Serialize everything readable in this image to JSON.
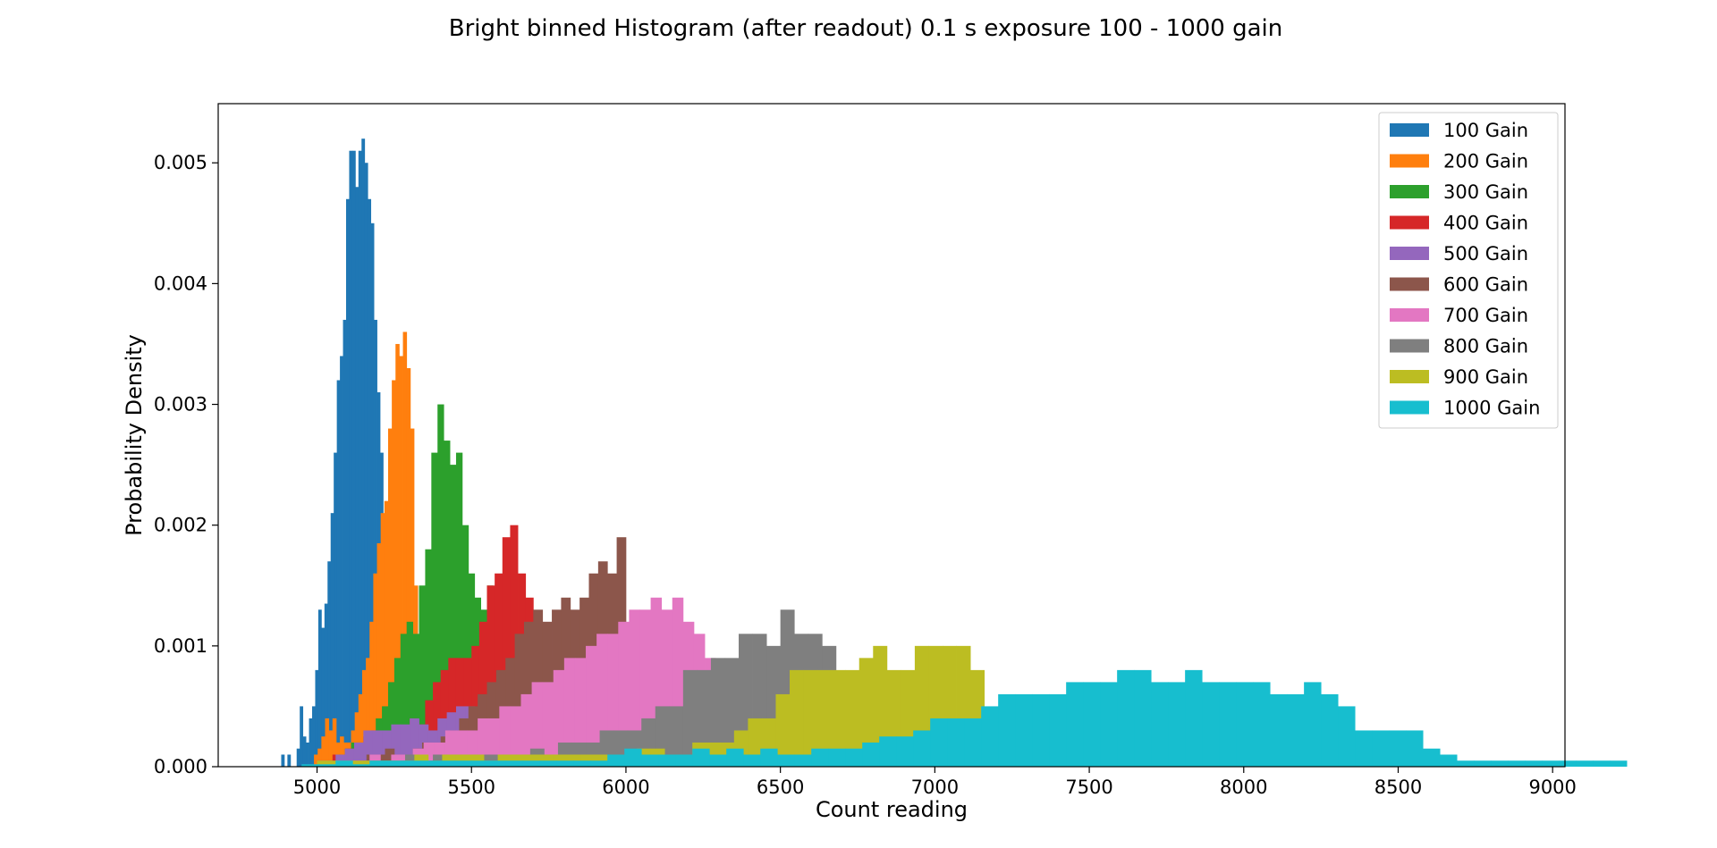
{
  "chart_data": {
    "type": "bar",
    "title": "Bright binned Histogram (after readout) 0.1 s exposure 100 - 1000 gain",
    "xlabel": "Count reading",
    "ylabel": "Probability Density",
    "xlim": [
      4680,
      9040
    ],
    "ylim": [
      0,
      0.00549
    ],
    "xticks": [
      5000,
      5500,
      6000,
      6500,
      7000,
      7500,
      8000,
      8500,
      9000
    ],
    "xtick_labels": [
      "5000",
      "5500",
      "6000",
      "6500",
      "7000",
      "7500",
      "8000",
      "8500",
      "9000"
    ],
    "yticks": [
      0,
      0.001,
      0.002,
      0.003,
      0.004,
      0.005
    ],
    "ytick_labels": [
      "0.000",
      "0.001",
      "0.002",
      "0.003",
      "0.004",
      "0.005"
    ],
    "grid": false,
    "legend_position": "top-right",
    "series": [
      {
        "name": "100 Gain",
        "color": "#1f77b4",
        "start": 4884,
        "bin_width": 10,
        "values": [
          0.0001,
          0,
          0.0001,
          0,
          0,
          0.00015,
          0.0005,
          0.00025,
          0.0002,
          0.0004,
          0.0005,
          0.0008,
          0.0013,
          0.00115,
          0.00135,
          0.0017,
          0.0021,
          0.0026,
          0.0032,
          0.0034,
          0.0037,
          0.0047,
          0.0051,
          0.0051,
          0.0048,
          0.0051,
          0.0052,
          0.005,
          0.0047,
          0.0045,
          0.0037,
          0.0031,
          0.0026,
          0.0007
        ]
      },
      {
        "name": "200 Gain",
        "color": "#ff7f0e",
        "start": 4990,
        "bin_width": 12,
        "values": [
          0.0001,
          0.00015,
          0.00025,
          0.0004,
          0.0003,
          0.0004,
          0.0002,
          0.00025,
          0.0002,
          0.0002,
          0.0003,
          0.00045,
          0.0006,
          0.0008,
          0.0009,
          0.0012,
          0.0016,
          0.00185,
          0.0021,
          0.0022,
          0.0028,
          0.0032,
          0.0035,
          0.0034,
          0.0036,
          0.0033,
          0.0028,
          0.0015,
          0.0004,
          0.00035
        ]
      },
      {
        "name": "300 Gain",
        "color": "#2ca02c",
        "start": 5050,
        "bin_width": 20,
        "values": [
          5e-05,
          0.0001,
          0.00015,
          0.0002,
          0.0001,
          0.0002,
          0.0001,
          0.0004,
          0.0005,
          0.0007,
          0.0009,
          0.0011,
          0.0012,
          0.0011,
          0.0015,
          0.0018,
          0.0026,
          0.003,
          0.0027,
          0.0025,
          0.0026,
          0.002,
          0.0016,
          0.0014,
          0.0013,
          0.0015,
          0.0012,
          0.001,
          0.0008
        ]
      },
      {
        "name": "400 Gain",
        "color": "#d62728",
        "start": 5050,
        "bin_width": 25,
        "values": [
          0.0001,
          0.0001,
          0.00015,
          0.0002,
          0.00025,
          0.0003,
          0.0002,
          0.00015,
          0.00025,
          0.0003,
          0.0004,
          0.00035,
          0.00055,
          0.0007,
          0.0008,
          0.0009,
          0.0009,
          0.0009,
          0.001,
          0.0012,
          0.0015,
          0.0016,
          0.0019,
          0.002,
          0.0016,
          0.0014,
          0.00125
        ]
      },
      {
        "name": "500 Gain",
        "color": "#9467bd",
        "start": 5000,
        "bin_width": 30,
        "values": [
          5e-05,
          5e-05,
          0.0001,
          0.00015,
          0.0002,
          0.0003,
          0.0003,
          0.0003,
          0.00035,
          0.00035,
          0.0004,
          0.00035,
          0.0003,
          0.0004,
          0.00045,
          0.0005,
          0.0005,
          0.00045,
          0.0005,
          0.0006,
          0.0006,
          0.0006,
          0.0007,
          0.00075,
          0.0008,
          0.0009
        ]
      },
      {
        "name": "600 Gain",
        "color": "#8c564b",
        "start": 5100,
        "bin_width": 30,
        "values": [
          5e-05,
          5e-05,
          0.0001,
          0.0001,
          0.00015,
          0.0001,
          0.0001,
          0.00015,
          0.0002,
          0.0002,
          0.00025,
          0.0003,
          0.0004,
          0.0005,
          0.0006,
          0.0007,
          0.0008,
          0.0009,
          0.0011,
          0.0012,
          0.0013,
          0.0012,
          0.0013,
          0.0014,
          0.0013,
          0.0014,
          0.0016,
          0.0017,
          0.0016,
          0.0019
        ]
      },
      {
        "name": "700 Gain",
        "color": "#e377c2",
        "start": 5100,
        "bin_width": 35,
        "values": [
          5e-05,
          5e-05,
          0.0001,
          5e-05,
          0.0001,
          0.0001,
          0.00015,
          0.0002,
          0.0002,
          0.0003,
          0.0003,
          0.0003,
          0.0004,
          0.0004,
          0.0005,
          0.0005,
          0.0006,
          0.0007,
          0.0007,
          0.0008,
          0.0009,
          0.0009,
          0.001,
          0.0011,
          0.0011,
          0.0012,
          0.0013,
          0.0013,
          0.0014,
          0.0013,
          0.0014,
          0.0012,
          0.0011,
          0.0009
        ]
      },
      {
        "name": "800 Gain",
        "color": "#7f7f7f",
        "start": 5150,
        "bin_width": 45,
        "values": [
          5e-05,
          5e-05,
          5e-05,
          0.0001,
          5e-05,
          0.0001,
          0.0001,
          0.0001,
          0.0001,
          0.0001,
          0.0001,
          0.0001,
          0.00015,
          0.0001,
          0.0002,
          0.0002,
          0.0002,
          0.0003,
          0.0003,
          0.0003,
          0.0004,
          0.0005,
          0.0005,
          0.0008,
          0.0008,
          0.0009,
          0.0009,
          0.0011,
          0.0011,
          0.001,
          0.0013,
          0.0011,
          0.0011,
          0.001
        ]
      },
      {
        "name": "900 Gain",
        "color": "#bcbd22",
        "start": 5000,
        "bin_width": 45,
        "values": [
          5e-05,
          5e-05,
          5e-05,
          5e-05,
          5e-05,
          5e-05,
          5e-05,
          0.0001,
          5e-05,
          0.0001,
          0.0001,
          0.0001,
          5e-05,
          0.0001,
          0.0001,
          0.0001,
          0.0001,
          0.0001,
          0.0001,
          0.0001,
          0.0001,
          0.0001,
          0.0001,
          0.00015,
          0.00015,
          0.0001,
          0.0001,
          0.0002,
          0.0002,
          0.0002,
          0.0003,
          0.0004,
          0.0004,
          0.0006,
          0.0008,
          0.0008,
          0.0008,
          0.0008,
          0.0008,
          0.0009,
          0.001,
          0.0008,
          0.0008,
          0.001,
          0.001,
          0.001,
          0.001,
          0.0008
        ]
      },
      {
        "name": "1000 Gain",
        "color": "#17becf",
        "start": 4950,
        "bin_width": 55,
        "values": [
          2e-05,
          2e-05,
          5e-05,
          2e-05,
          5e-05,
          5e-05,
          5e-05,
          5e-05,
          5e-05,
          5e-05,
          5e-05,
          5e-05,
          5e-05,
          5e-05,
          5e-05,
          5e-05,
          5e-05,
          5e-05,
          0.0001,
          0.00015,
          0.0001,
          0.0001,
          0.0001,
          0.00015,
          0.0001,
          0.00015,
          0.0001,
          0.00015,
          0.0001,
          0.0001,
          0.00015,
          0.00015,
          0.00015,
          0.0002,
          0.00025,
          0.00025,
          0.0003,
          0.0004,
          0.0004,
          0.0004,
          0.0005,
          0.0006,
          0.0006,
          0.0006,
          0.0006,
          0.0007,
          0.0007,
          0.0007,
          0.0008,
          0.0008,
          0.0007,
          0.0007,
          0.0008,
          0.0007,
          0.0007,
          0.0007,
          0.0007,
          0.0006,
          0.0006,
          0.0007,
          0.0006,
          0.0005,
          0.0003,
          0.0003,
          0.0003,
          0.0003,
          0.00015,
          0.0001,
          5e-05,
          5e-05,
          5e-05,
          5e-05,
          5e-05,
          5e-05,
          5e-05,
          5e-05,
          5e-05,
          5e-05
        ]
      }
    ]
  }
}
